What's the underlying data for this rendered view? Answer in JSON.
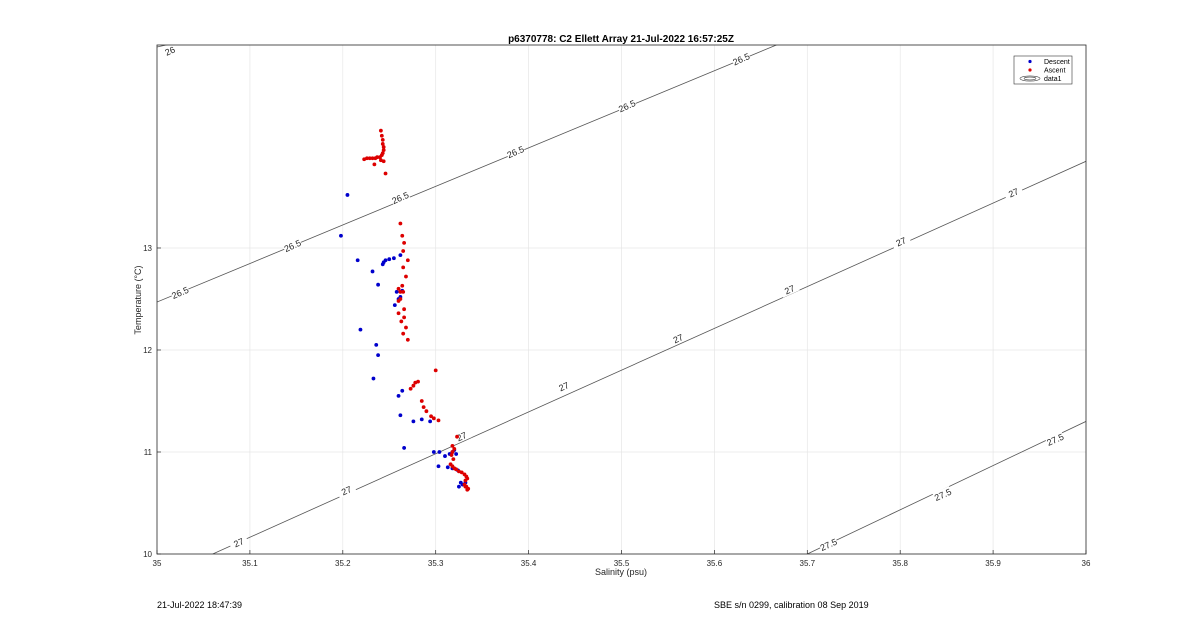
{
  "footer": {
    "left": "21-Jul-2022 18:47:39",
    "right": "SBE s/n 0299, calibration 08 Sep 2019"
  },
  "colors": {
    "descent": "#0000cc",
    "ascent": "#dd0000",
    "contour": "#555555",
    "grid": "#e6e6e6"
  },
  "chart_data": {
    "type": "scatter",
    "title": "p6370778: C2 Ellett Array 21-Jul-2022 16:57:25Z",
    "xlabel": "Salinity (psu)",
    "ylabel": "Temperature (°C)",
    "xlim": [
      35,
      36
    ],
    "ylim": [
      10,
      14.99
    ],
    "xticks": [
      "35",
      "35.1",
      "35.2",
      "35.3",
      "35.4",
      "35.5",
      "35.6",
      "35.7",
      "35.8",
      "35.9",
      "36"
    ],
    "yticks": [
      "10",
      "11",
      "12",
      "13"
    ],
    "grid": true,
    "legend": {
      "position": "top-right",
      "entries": [
        "Descent",
        "Ascent",
        "data1"
      ]
    },
    "contours": [
      {
        "level": "26",
        "start": [
          35.0,
          14.97
        ],
        "end": [
          35.034,
          15.04
        ],
        "labels": [
          {
            "text": "26",
            "x": 35.014,
            "y": 14.93,
            "angle": -24
          }
        ]
      },
      {
        "level": "26.5",
        "start": [
          35.0,
          12.47
        ],
        "end": [
          35.68,
          15.04
        ],
        "labels": [
          {
            "text": "26.5",
            "x": 35.025,
            "y": 12.56,
            "angle": -24
          },
          {
            "text": "26.5",
            "x": 35.146,
            "y": 13.02,
            "angle": -24
          },
          {
            "text": "26.5",
            "x": 35.262,
            "y": 13.49,
            "angle": -24
          },
          {
            "text": "26.5",
            "x": 35.386,
            "y": 13.94,
            "angle": -24
          },
          {
            "text": "26.5",
            "x": 35.506,
            "y": 14.39,
            "angle": -24
          },
          {
            "text": "26.5",
            "x": 35.629,
            "y": 14.85,
            "angle": -24
          }
        ]
      },
      {
        "level": "27",
        "start": [
          35.06,
          10.0
        ],
        "end": [
          36.0,
          13.85
        ],
        "labels": [
          {
            "text": "27",
            "x": 35.088,
            "y": 10.11,
            "angle": -24
          },
          {
            "text": "27",
            "x": 35.204,
            "y": 10.62,
            "angle": -24
          },
          {
            "text": "27",
            "x": 35.328,
            "y": 11.15,
            "angle": -24
          },
          {
            "text": "27",
            "x": 35.438,
            "y": 11.64,
            "angle": -24
          },
          {
            "text": "27",
            "x": 35.561,
            "y": 12.11,
            "angle": -24
          },
          {
            "text": "27",
            "x": 35.681,
            "y": 12.59,
            "angle": -24
          },
          {
            "text": "27",
            "x": 35.801,
            "y": 13.06,
            "angle": -24
          },
          {
            "text": "27",
            "x": 35.922,
            "y": 13.54,
            "angle": -24
          }
        ]
      },
      {
        "level": "27.5",
        "start": [
          35.7,
          10.0
        ],
        "end": [
          36.0,
          11.3
        ],
        "labels": [
          {
            "text": "27.5",
            "x": 35.723,
            "y": 10.09,
            "angle": -24
          },
          {
            "text": "27.5",
            "x": 35.846,
            "y": 10.58,
            "angle": -24
          },
          {
            "text": "27.5",
            "x": 35.967,
            "y": 11.12,
            "angle": -24
          }
        ]
      }
    ],
    "series": [
      {
        "name": "Descent",
        "color": "#0000cc",
        "x": [
          35.262,
          35.255,
          35.25,
          35.246,
          35.244,
          35.243,
          35.205,
          35.198,
          35.216,
          35.232,
          35.238,
          35.258,
          35.262,
          35.256,
          35.26,
          35.264,
          35.219,
          35.236,
          35.238,
          35.233,
          35.264,
          35.26,
          35.262,
          35.276,
          35.285,
          35.294,
          35.266,
          35.298,
          35.304,
          35.31,
          35.315,
          35.318,
          35.322,
          35.32,
          35.303,
          35.313,
          35.318,
          35.324,
          35.327,
          35.325,
          35.329,
          35.332
        ],
        "y": [
          12.93,
          12.9,
          12.89,
          12.88,
          12.86,
          12.84,
          13.52,
          13.12,
          12.88,
          12.77,
          12.64,
          12.57,
          12.52,
          12.44,
          12.5,
          12.58,
          12.2,
          12.05,
          11.95,
          11.72,
          11.6,
          11.55,
          11.36,
          11.3,
          11.32,
          11.3,
          11.04,
          11.0,
          11.0,
          10.96,
          10.98,
          11.0,
          10.98,
          11.02,
          10.86,
          10.85,
          10.84,
          10.82,
          10.7,
          10.66,
          10.68,
          10.7
        ]
      },
      {
        "name": "Ascent",
        "color": "#dd0000",
        "x": [
          35.241,
          35.242,
          35.243,
          35.243,
          35.244,
          35.244,
          35.243,
          35.242,
          35.24,
          35.237,
          35.235,
          35.232,
          35.229,
          35.226,
          35.223,
          35.241,
          35.244,
          35.234,
          35.246,
          35.262,
          35.264,
          35.266,
          35.265,
          35.27,
          35.265,
          35.268,
          35.264,
          35.262,
          35.26,
          35.265,
          35.262,
          35.26,
          35.266,
          35.26,
          35.266,
          35.263,
          35.268,
          35.265,
          35.27,
          35.3,
          35.281,
          35.278,
          35.276,
          35.273,
          35.285,
          35.287,
          35.29,
          35.295,
          35.298,
          35.303,
          35.323,
          35.318,
          35.32,
          35.318,
          35.317,
          35.319,
          35.316,
          35.318,
          35.32,
          35.322,
          35.325,
          35.328,
          35.331,
          35.333,
          35.334,
          35.332,
          35.331,
          35.333,
          35.335,
          35.334,
          35.332
        ],
        "y": [
          14.15,
          14.1,
          14.06,
          14.02,
          13.99,
          13.96,
          13.93,
          13.91,
          13.89,
          13.89,
          13.88,
          13.88,
          13.88,
          13.88,
          13.87,
          13.86,
          13.85,
          13.82,
          13.73,
          13.24,
          13.12,
          13.05,
          12.97,
          12.88,
          12.81,
          12.72,
          12.63,
          12.57,
          12.6,
          12.57,
          12.5,
          12.48,
          12.4,
          12.36,
          12.32,
          12.28,
          12.22,
          12.16,
          12.1,
          11.8,
          11.69,
          11.68,
          11.65,
          11.62,
          11.5,
          11.44,
          11.4,
          11.35,
          11.33,
          11.31,
          11.15,
          11.06,
          11.03,
          11.0,
          10.97,
          10.93,
          10.88,
          10.86,
          10.84,
          10.83,
          10.81,
          10.8,
          10.78,
          10.76,
          10.74,
          10.72,
          10.68,
          10.66,
          10.64,
          10.63,
          10.66
        ]
      }
    ]
  }
}
